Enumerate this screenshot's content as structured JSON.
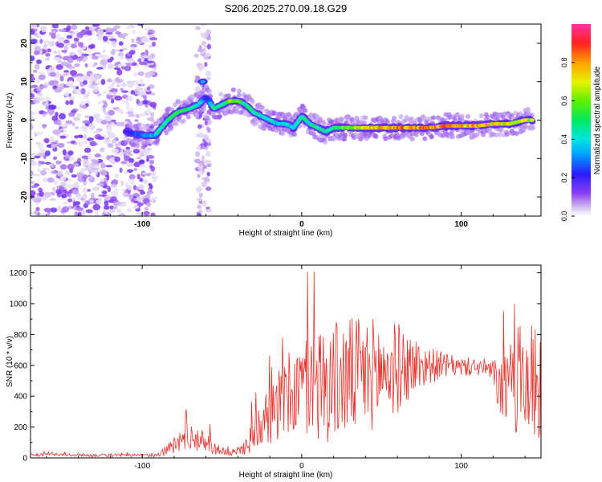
{
  "title": "S206.2025.270.09.18.G29",
  "chart_data": [
    {
      "type": "heatmap",
      "xlabel": "Height of straight line (km)",
      "ylabel": "Frequency (Hz)",
      "xlim": [
        -170,
        150
      ],
      "ylim": [
        -25,
        25
      ],
      "x_ticks": [
        -100,
        0,
        100
      ],
      "x_ticklabels": [
        "-100",
        "0",
        "100"
      ],
      "y_ticks": [
        -20,
        -10,
        0,
        10,
        20
      ],
      "y_ticklabels": [
        "-20",
        "-10",
        "0",
        "10",
        "20"
      ],
      "grid": false,
      "colorbar": {
        "label": "Normalized spectral amplitude",
        "range": [
          0,
          1
        ],
        "ticks": [
          0.0,
          0.2,
          0.4,
          0.6,
          0.8
        ],
        "ticklabels": [
          "0.0",
          "0.2",
          "0.4",
          "0.6",
          "0.8"
        ]
      },
      "ridge": {
        "x": [
          -110,
          -100,
          -92,
          -88,
          -84,
          -78,
          -70,
          -65,
          -60,
          -55,
          -50,
          -45,
          -40,
          -35,
          -30,
          -25,
          -20,
          -15,
          -10,
          -5,
          0,
          5,
          10,
          15,
          20,
          30,
          40,
          50,
          60,
          70,
          80,
          90,
          100,
          110,
          120,
          130,
          140,
          145
        ],
        "y": [
          -3,
          -4,
          -4,
          -2,
          0,
          2,
          3,
          4,
          6,
          3,
          4,
          5,
          5,
          4,
          2,
          1,
          0,
          -1,
          -1,
          -2,
          1,
          -1,
          -2,
          -3,
          -2,
          -2,
          -2,
          -2,
          -2,
          -2,
          -2,
          -1.5,
          -1.5,
          -1.5,
          -1,
          -1,
          0,
          0
        ],
        "amplitude": [
          0.2,
          0.3,
          0.4,
          0.45,
          0.45,
          0.55,
          0.5,
          0.45,
          0.2,
          0.5,
          0.5,
          0.6,
          0.55,
          0.5,
          0.45,
          0.4,
          0.45,
          0.4,
          0.4,
          0.35,
          0.5,
          0.4,
          0.45,
          0.45,
          0.5,
          0.6,
          0.7,
          0.8,
          0.8,
          0.8,
          0.85,
          0.85,
          0.8,
          0.8,
          0.75,
          0.7,
          0.65,
          0.6
        ]
      }
    },
    {
      "type": "line",
      "xlabel": "Height of straight line (km)",
      "ylabel": "SNR (10 * v/v)",
      "xlim": [
        -170,
        150
      ],
      "ylim": [
        0,
        1250
      ],
      "x_ticks": [
        -100,
        0,
        100
      ],
      "x_ticklabels": [
        "-100",
        "0",
        "100"
      ],
      "y_ticks": [
        0,
        200,
        400,
        600,
        800,
        1000,
        1200
      ],
      "y_ticklabels": [
        "0",
        "200",
        "400",
        "600",
        "800",
        "1000",
        "1200"
      ],
      "grid": false,
      "series": [
        {
          "color": "#e8312a",
          "envelope": {
            "x": [
              -170,
              -150,
              -120,
              -100,
              -90,
              -85,
              -80,
              -75,
              -70,
              -65,
              -60,
              -55,
              -50,
              -45,
              -40,
              -35,
              -30,
              -25,
              -20,
              -15,
              -10,
              -5,
              0,
              5,
              10,
              20,
              30,
              40,
              50,
              60,
              70,
              80,
              90,
              100,
              110,
              117,
              125,
              130,
              135,
              140,
              145,
              150
            ],
            "mean": [
              20,
              20,
              15,
              15,
              20,
              50,
              80,
              120,
              150,
              100,
              120,
              60,
              40,
              30,
              40,
              80,
              150,
              250,
              300,
              330,
              380,
              420,
              450,
              480,
              480,
              500,
              520,
              540,
              560,
              580,
              600,
              600,
              600,
              590,
              590,
              580,
              450,
              420,
              500,
              500,
              480,
              480
            ],
            "spread": [
              10,
              10,
              10,
              10,
              15,
              30,
              60,
              80,
              90,
              60,
              80,
              40,
              20,
              20,
              30,
              60,
              120,
              180,
              220,
              250,
              280,
              300,
              320,
              350,
              380,
              400,
              400,
              380,
              350,
              300,
              200,
              120,
              80,
              60,
              60,
              60,
              200,
              300,
              350,
              380,
              400,
              400
            ]
          }
        }
      ]
    }
  ]
}
